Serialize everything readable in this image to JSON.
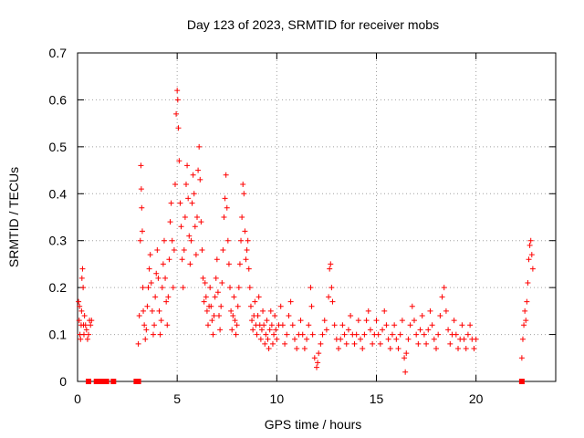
{
  "chart_data": {
    "type": "scatter",
    "title": "Day 123 of 2023, SRMTID for receiver mobs",
    "xlabel": "GPS time / hours",
    "ylabel": "SRMTID / TECUs",
    "xlim": [
      0,
      24
    ],
    "ylim": [
      0,
      0.7
    ],
    "xticks": [
      0,
      5,
      10,
      15,
      20
    ],
    "yticks": [
      0,
      0.1,
      0.2,
      0.3,
      0.4,
      0.5,
      0.6,
      0.7
    ],
    "xtick_labels": [
      "0",
      "5",
      "10",
      "15",
      "20"
    ],
    "ytick_labels": [
      "0",
      "0.1",
      "0.2",
      "0.3",
      "0.4",
      "0.5",
      "0.6",
      "0.7"
    ],
    "grid": true,
    "marker": "+",
    "color": "#ff0000",
    "series": [
      {
        "name": "SRMTID",
        "points": [
          [
            0.05,
            0.17
          ],
          [
            0.08,
            0.13
          ],
          [
            0.1,
            0.16
          ],
          [
            0.12,
            0.1
          ],
          [
            0.15,
            0.09
          ],
          [
            0.18,
            0.12
          ],
          [
            0.2,
            0.15
          ],
          [
            0.22,
            0.22
          ],
          [
            0.25,
            0.24
          ],
          [
            0.28,
            0.2
          ],
          [
            0.3,
            0.12
          ],
          [
            0.32,
            0.1
          ],
          [
            0.35,
            0.14
          ],
          [
            0.4,
            0.12
          ],
          [
            0.45,
            0.11
          ],
          [
            0.5,
            0.09
          ],
          [
            0.55,
            0.1
          ],
          [
            0.6,
            0.13
          ],
          [
            0.65,
            0.12
          ],
          [
            0.7,
            0.13
          ],
          [
            3.05,
            0.08
          ],
          [
            3.1,
            0.14
          ],
          [
            3.15,
            0.3
          ],
          [
            3.18,
            0.46
          ],
          [
            3.2,
            0.41
          ],
          [
            3.22,
            0.37
          ],
          [
            3.25,
            0.32
          ],
          [
            3.28,
            0.2
          ],
          [
            3.3,
            0.15
          ],
          [
            3.35,
            0.12
          ],
          [
            3.4,
            0.09
          ],
          [
            3.45,
            0.11
          ],
          [
            3.5,
            0.16
          ],
          [
            3.55,
            0.2
          ],
          [
            3.6,
            0.24
          ],
          [
            3.65,
            0.27
          ],
          [
            3.7,
            0.21
          ],
          [
            3.75,
            0.15
          ],
          [
            3.8,
            0.1
          ],
          [
            3.85,
            0.12
          ],
          [
            3.9,
            0.18
          ],
          [
            3.95,
            0.23
          ],
          [
            4.0,
            0.28
          ],
          [
            4.05,
            0.22
          ],
          [
            4.1,
            0.15
          ],
          [
            4.15,
            0.1
          ],
          [
            4.2,
            0.13
          ],
          [
            4.25,
            0.2
          ],
          [
            4.3,
            0.25
          ],
          [
            4.35,
            0.3
          ],
          [
            4.4,
            0.22
          ],
          [
            4.45,
            0.17
          ],
          [
            4.5,
            0.12
          ],
          [
            4.55,
            0.18
          ],
          [
            4.6,
            0.26
          ],
          [
            4.65,
            0.34
          ],
          [
            4.7,
            0.38
          ],
          [
            4.75,
            0.3
          ],
          [
            4.8,
            0.2
          ],
          [
            4.85,
            0.28
          ],
          [
            4.9,
            0.42
          ],
          [
            4.95,
            0.57
          ],
          [
            5.0,
            0.62
          ],
          [
            5.03,
            0.6
          ],
          [
            5.06,
            0.54
          ],
          [
            5.1,
            0.47
          ],
          [
            5.15,
            0.38
          ],
          [
            5.2,
            0.33
          ],
          [
            5.25,
            0.26
          ],
          [
            5.3,
            0.2
          ],
          [
            5.35,
            0.28
          ],
          [
            5.4,
            0.35
          ],
          [
            5.45,
            0.42
          ],
          [
            5.5,
            0.46
          ],
          [
            5.55,
            0.39
          ],
          [
            5.6,
            0.31
          ],
          [
            5.65,
            0.25
          ],
          [
            5.7,
            0.3
          ],
          [
            5.75,
            0.38
          ],
          [
            5.8,
            0.44
          ],
          [
            5.85,
            0.4
          ],
          [
            5.9,
            0.33
          ],
          [
            5.95,
            0.27
          ],
          [
            6.0,
            0.35
          ],
          [
            6.05,
            0.45
          ],
          [
            6.1,
            0.5
          ],
          [
            6.15,
            0.43
          ],
          [
            6.2,
            0.34
          ],
          [
            6.25,
            0.28
          ],
          [
            6.3,
            0.22
          ],
          [
            6.35,
            0.17
          ],
          [
            6.4,
            0.21
          ],
          [
            6.45,
            0.18
          ],
          [
            6.5,
            0.15
          ],
          [
            6.55,
            0.12
          ],
          [
            6.6,
            0.16
          ],
          [
            6.65,
            0.2
          ],
          [
            6.7,
            0.16
          ],
          [
            6.75,
            0.13
          ],
          [
            6.8,
            0.1
          ],
          [
            6.85,
            0.14
          ],
          [
            6.9,
            0.18
          ],
          [
            6.95,
            0.22
          ],
          [
            7.0,
            0.26
          ],
          [
            7.05,
            0.19
          ],
          [
            7.1,
            0.14
          ],
          [
            7.15,
            0.11
          ],
          [
            7.2,
            0.16
          ],
          [
            7.25,
            0.21
          ],
          [
            7.3,
            0.28
          ],
          [
            7.35,
            0.35
          ],
          [
            7.4,
            0.39
          ],
          [
            7.45,
            0.44
          ],
          [
            7.5,
            0.37
          ],
          [
            7.55,
            0.3
          ],
          [
            7.6,
            0.25
          ],
          [
            7.65,
            0.2
          ],
          [
            7.7,
            0.15
          ],
          [
            7.75,
            0.11
          ],
          [
            7.8,
            0.14
          ],
          [
            7.85,
            0.18
          ],
          [
            7.9,
            0.13
          ],
          [
            7.95,
            0.1
          ],
          [
            8.0,
            0.12
          ],
          [
            8.05,
            0.16
          ],
          [
            8.1,
            0.2
          ],
          [
            8.15,
            0.25
          ],
          [
            8.2,
            0.3
          ],
          [
            8.25,
            0.35
          ],
          [
            8.3,
            0.42
          ],
          [
            8.35,
            0.4
          ],
          [
            8.4,
            0.32
          ],
          [
            8.45,
            0.26
          ],
          [
            8.5,
            0.28
          ],
          [
            8.55,
            0.3
          ],
          [
            8.6,
            0.24
          ],
          [
            8.65,
            0.2
          ],
          [
            8.7,
            0.16
          ],
          [
            8.75,
            0.13
          ],
          [
            8.8,
            0.11
          ],
          [
            8.85,
            0.14
          ],
          [
            8.9,
            0.17
          ],
          [
            8.95,
            0.12
          ],
          [
            9.0,
            0.1
          ],
          [
            9.05,
            0.14
          ],
          [
            9.1,
            0.18
          ],
          [
            9.15,
            0.12
          ],
          [
            9.2,
            0.09
          ],
          [
            9.25,
            0.11
          ],
          [
            9.3,
            0.15
          ],
          [
            9.35,
            0.12
          ],
          [
            9.4,
            0.08
          ],
          [
            9.45,
            0.1
          ],
          [
            9.5,
            0.13
          ],
          [
            9.55,
            0.09
          ],
          [
            9.6,
            0.07
          ],
          [
            9.65,
            0.11
          ],
          [
            9.7,
            0.15
          ],
          [
            9.75,
            0.12
          ],
          [
            9.8,
            0.08
          ],
          [
            9.85,
            0.1
          ],
          [
            9.9,
            0.14
          ],
          [
            9.95,
            0.11
          ],
          [
            10.0,
            0.09
          ],
          [
            10.1,
            0.12
          ],
          [
            10.2,
            0.16
          ],
          [
            10.3,
            0.12
          ],
          [
            10.4,
            0.08
          ],
          [
            10.5,
            0.1
          ],
          [
            10.6,
            0.14
          ],
          [
            10.7,
            0.17
          ],
          [
            10.8,
            0.12
          ],
          [
            10.9,
            0.09
          ],
          [
            11.0,
            0.07
          ],
          [
            11.1,
            0.1
          ],
          [
            11.2,
            0.13
          ],
          [
            11.3,
            0.1
          ],
          [
            11.4,
            0.07
          ],
          [
            11.5,
            0.09
          ],
          [
            11.6,
            0.12
          ],
          [
            11.7,
            0.2
          ],
          [
            11.75,
            0.16
          ],
          [
            11.8,
            0.1
          ],
          [
            11.9,
            0.05
          ],
          [
            12.0,
            0.03
          ],
          [
            12.05,
            0.04
          ],
          [
            12.1,
            0.06
          ],
          [
            12.2,
            0.08
          ],
          [
            12.3,
            0.1
          ],
          [
            12.4,
            0.13
          ],
          [
            12.5,
            0.11
          ],
          [
            12.6,
            0.18
          ],
          [
            12.65,
            0.24
          ],
          [
            12.7,
            0.25
          ],
          [
            12.75,
            0.2
          ],
          [
            12.8,
            0.17
          ],
          [
            12.9,
            0.12
          ],
          [
            13.0,
            0.09
          ],
          [
            13.1,
            0.07
          ],
          [
            13.2,
            0.09
          ],
          [
            13.3,
            0.12
          ],
          [
            13.4,
            0.1
          ],
          [
            13.5,
            0.08
          ],
          [
            13.6,
            0.11
          ],
          [
            13.7,
            0.14
          ],
          [
            13.8,
            0.1
          ],
          [
            13.9,
            0.08
          ],
          [
            14.0,
            0.1
          ],
          [
            14.1,
            0.13
          ],
          [
            14.2,
            0.09
          ],
          [
            14.3,
            0.07
          ],
          [
            14.4,
            0.1
          ],
          [
            14.5,
            0.13
          ],
          [
            14.6,
            0.15
          ],
          [
            14.7,
            0.11
          ],
          [
            14.8,
            0.08
          ],
          [
            14.9,
            0.1
          ],
          [
            15.0,
            0.13
          ],
          [
            15.1,
            0.1
          ],
          [
            15.2,
            0.08
          ],
          [
            15.3,
            0.11
          ],
          [
            15.4,
            0.15
          ],
          [
            15.5,
            0.12
          ],
          [
            15.6,
            0.09
          ],
          [
            15.7,
            0.07
          ],
          [
            15.8,
            0.1
          ],
          [
            15.9,
            0.12
          ],
          [
            16.0,
            0.09
          ],
          [
            16.1,
            0.07
          ],
          [
            16.2,
            0.1
          ],
          [
            16.3,
            0.13
          ],
          [
            16.4,
            0.05
          ],
          [
            16.45,
            0.02
          ],
          [
            16.5,
            0.06
          ],
          [
            16.6,
            0.09
          ],
          [
            16.7,
            0.12
          ],
          [
            16.8,
            0.16
          ],
          [
            16.9,
            0.13
          ],
          [
            17.0,
            0.1
          ],
          [
            17.1,
            0.08
          ],
          [
            17.2,
            0.11
          ],
          [
            17.3,
            0.14
          ],
          [
            17.4,
            0.1
          ],
          [
            17.5,
            0.08
          ],
          [
            17.6,
            0.11
          ],
          [
            17.7,
            0.15
          ],
          [
            17.8,
            0.12
          ],
          [
            17.9,
            0.09
          ],
          [
            18.0,
            0.07
          ],
          [
            18.1,
            0.1
          ],
          [
            18.2,
            0.14
          ],
          [
            18.3,
            0.18
          ],
          [
            18.4,
            0.2
          ],
          [
            18.5,
            0.15
          ],
          [
            18.6,
            0.11
          ],
          [
            18.7,
            0.08
          ],
          [
            18.8,
            0.1
          ],
          [
            18.9,
            0.13
          ],
          [
            19.0,
            0.1
          ],
          [
            19.1,
            0.07
          ],
          [
            19.2,
            0.09
          ],
          [
            19.3,
            0.12
          ],
          [
            19.4,
            0.09
          ],
          [
            19.5,
            0.07
          ],
          [
            19.6,
            0.1
          ],
          [
            19.7,
            0.12
          ],
          [
            19.8,
            0.09
          ],
          [
            19.9,
            0.07
          ],
          [
            20.0,
            0.09
          ],
          [
            22.3,
            0.05
          ],
          [
            22.35,
            0.09
          ],
          [
            22.4,
            0.12
          ],
          [
            22.45,
            0.15
          ],
          [
            22.5,
            0.13
          ],
          [
            22.55,
            0.17
          ],
          [
            22.6,
            0.21
          ],
          [
            22.65,
            0.26
          ],
          [
            22.7,
            0.29
          ],
          [
            22.75,
            0.3
          ],
          [
            22.8,
            0.27
          ],
          [
            22.85,
            0.24
          ]
        ]
      },
      {
        "name": "zero",
        "marker": "square",
        "points": [
          [
            0.55,
            0
          ],
          [
            0.95,
            0
          ],
          [
            1.15,
            0
          ],
          [
            1.35,
            0
          ],
          [
            1.45,
            0
          ],
          [
            1.8,
            0
          ],
          [
            2.95,
            0
          ],
          [
            3.0,
            0
          ],
          [
            3.05,
            0
          ],
          [
            22.3,
            0
          ]
        ]
      }
    ]
  }
}
